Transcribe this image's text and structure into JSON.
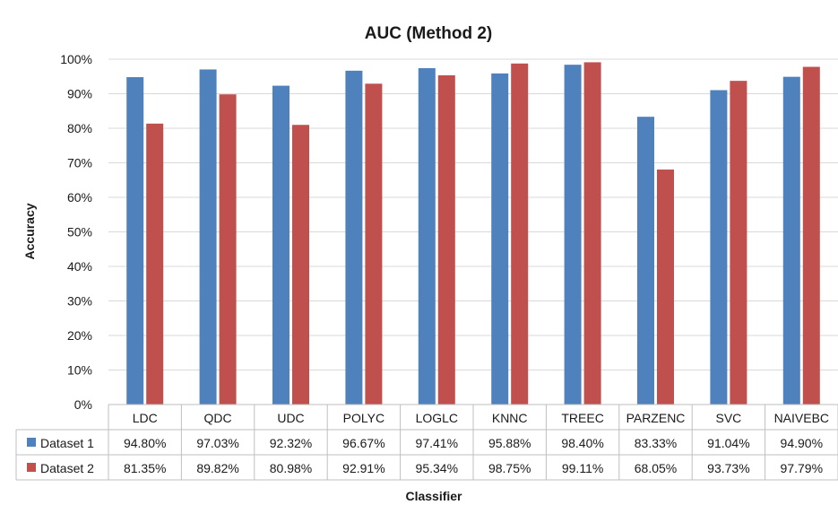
{
  "chart_data": {
    "type": "bar",
    "title": "AUC (Method 2)",
    "xlabel": "Classifier",
    "ylabel": "Accuracy",
    "ylim": [
      0,
      100
    ],
    "yticks": [
      "0%",
      "10%",
      "20%",
      "30%",
      "40%",
      "50%",
      "60%",
      "70%",
      "80%",
      "90%",
      "100%"
    ],
    "grid": "horizontal",
    "legend": "data-table-left",
    "categories": [
      "LDC",
      "QDC",
      "UDC",
      "POLYC",
      "LOGLC",
      "KNNC",
      "TREEC",
      "PARZENC",
      "SVC",
      "NAIVEBC"
    ],
    "series": [
      {
        "name": "Dataset 1",
        "color": "#4f81bd",
        "values": [
          94.8,
          97.03,
          92.32,
          96.67,
          97.41,
          95.88,
          98.4,
          83.33,
          91.04,
          94.9
        ],
        "labels": [
          "94.80%",
          "97.03%",
          "92.32%",
          "96.67%",
          "97.41%",
          "95.88%",
          "98.40%",
          "83.33%",
          "91.04%",
          "94.90%"
        ]
      },
      {
        "name": "Dataset 2",
        "color": "#c0504d",
        "values": [
          81.35,
          89.82,
          80.98,
          92.91,
          95.34,
          98.75,
          99.11,
          68.05,
          93.73,
          97.79
        ],
        "labels": [
          "81.35%",
          "89.82%",
          "80.98%",
          "92.91%",
          "95.34%",
          "98.75%",
          "99.11%",
          "68.05%",
          "93.73%",
          "97.79%"
        ]
      }
    ]
  }
}
